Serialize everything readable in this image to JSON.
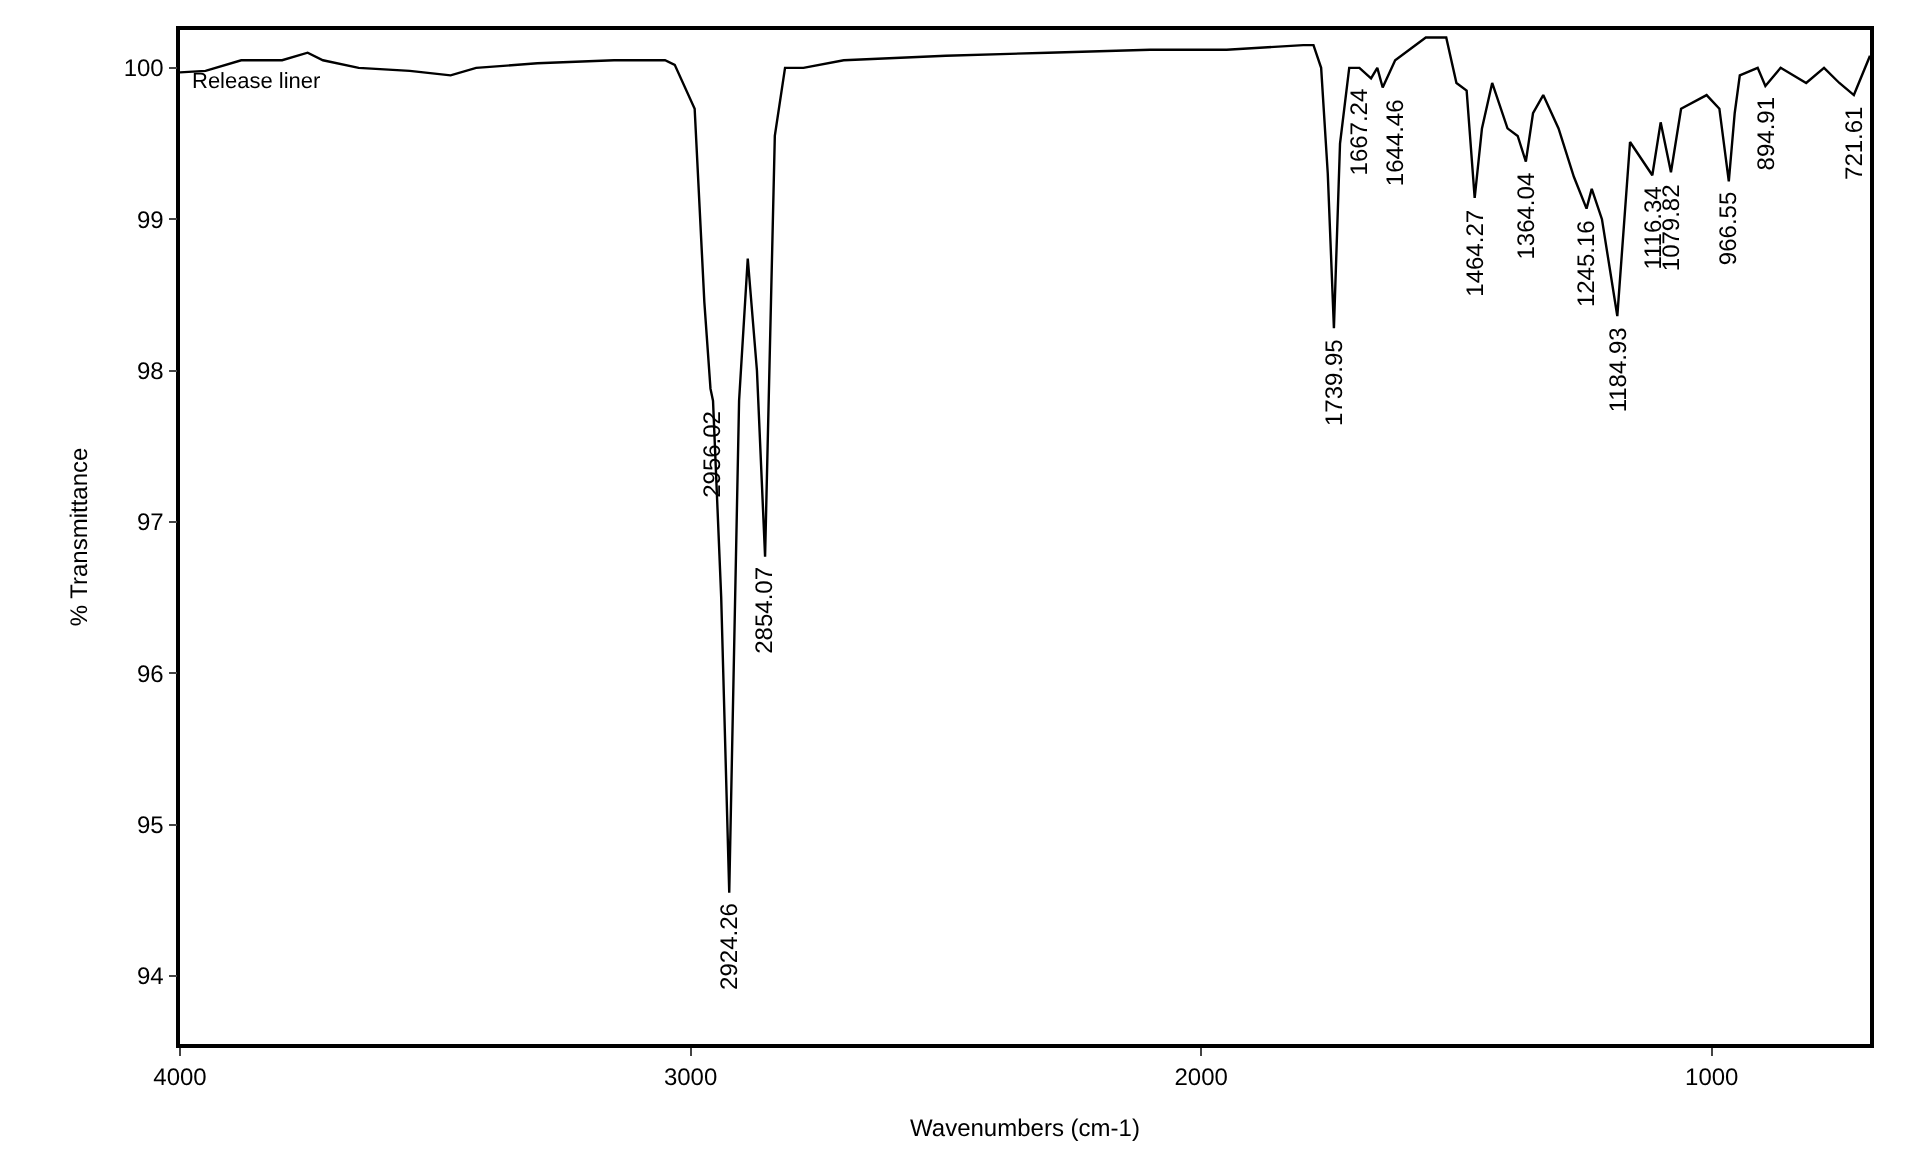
{
  "chart_data": {
    "type": "line",
    "xlabel": "Wavenumbers (cm-1)",
    "ylabel": "% Transmittance",
    "xlim": [
      4000,
      690
    ],
    "ylim": [
      93.55,
      100.25
    ],
    "xticks": [
      4000,
      3000,
      2000,
      1000
    ],
    "yticks": [
      94,
      95,
      96,
      97,
      98,
      99,
      100
    ],
    "marker": "none",
    "line_style": "solid",
    "x": [
      4000,
      3950,
      3880,
      3800,
      3750,
      3720,
      3650,
      3550,
      3470,
      3420,
      3300,
      3150,
      3050,
      3031,
      2992,
      2973,
      2961,
      2956.02,
      2940,
      2924.26,
      2905,
      2888,
      2870,
      2854.07,
      2835,
      2815,
      2779,
      2700,
      2500,
      2300,
      2100,
      1950,
      1800,
      1780,
      1765,
      1752,
      1739.95,
      1728,
      1710,
      1690,
      1667.24,
      1655,
      1644.46,
      1620,
      1560,
      1520,
      1500,
      1480,
      1464.27,
      1450,
      1430,
      1400,
      1380,
      1364.04,
      1350,
      1330,
      1300,
      1270,
      1245.16,
      1235,
      1215,
      1184.93,
      1160,
      1116.34,
      1100,
      1079.82,
      1060,
      1010,
      985,
      966.55,
      955,
      945,
      910,
      894.91,
      865,
      815,
      780,
      750,
      721.61,
      690
    ],
    "series": [
      {
        "color": "#000000",
        "values": [
          99.97,
          99.98,
          100.05,
          100.05,
          100.1,
          100.05,
          100.0,
          99.98,
          99.95,
          100.0,
          100.03,
          100.05,
          100.05,
          100.02,
          99.73,
          98.45,
          97.88,
          97.8,
          96.5,
          94.55,
          97.8,
          98.74,
          98.0,
          96.77,
          99.55,
          100.0,
          100.0,
          100.05,
          100.08,
          100.1,
          100.12,
          100.12,
          100.15,
          100.15,
          100.0,
          99.3,
          98.28,
          99.5,
          100.0,
          100.0,
          99.93,
          100.0,
          99.87,
          100.05,
          100.2,
          100.2,
          99.9,
          99.85,
          99.14,
          99.6,
          99.9,
          99.6,
          99.55,
          99.38,
          99.7,
          99.82,
          99.6,
          99.28,
          99.07,
          99.2,
          99.0,
          98.36,
          99.51,
          99.29,
          99.64,
          99.31,
          99.73,
          99.82,
          99.73,
          99.25,
          99.7,
          99.95,
          100.0,
          99.88,
          100.0,
          99.9,
          100.0,
          99.9,
          99.82,
          100.08
        ]
      }
    ],
    "annotations": [
      "Release liner",
      {
        "text": "2956.02",
        "x": 2956.02,
        "y": 97.8
      },
      {
        "text": "2924.26",
        "x": 2924.26,
        "y": 94.55
      },
      {
        "text": "2854.07",
        "x": 2854.07,
        "y": 96.77
      },
      {
        "text": "1739.95",
        "x": 1739.95,
        "y": 98.28
      },
      {
        "text": "1667.24",
        "x": 1667.24,
        "y": 99.93
      },
      {
        "text": "1644.46",
        "x": 1644.46,
        "y": 99.87
      },
      {
        "text": "1464.27",
        "x": 1464.27,
        "y": 99.14
      },
      {
        "text": "1364.04",
        "x": 1364.04,
        "y": 99.38
      },
      {
        "text": "1245.16",
        "x": 1245.16,
        "y": 99.07
      },
      {
        "text": "1184.93",
        "x": 1184.93,
        "y": 98.36
      },
      {
        "text": "1116.34",
        "x": 1116.34,
        "y": 99.29
      },
      {
        "text": "1079.82",
        "x": 1079.82,
        "y": 99.31
      },
      {
        "text": "966.55",
        "x": 966.55,
        "y": 99.25
      },
      {
        "text": "894.91",
        "x": 894.91,
        "y": 99.88
      },
      {
        "text": "721.61",
        "x": 721.61,
        "y": 99.82
      }
    ]
  }
}
